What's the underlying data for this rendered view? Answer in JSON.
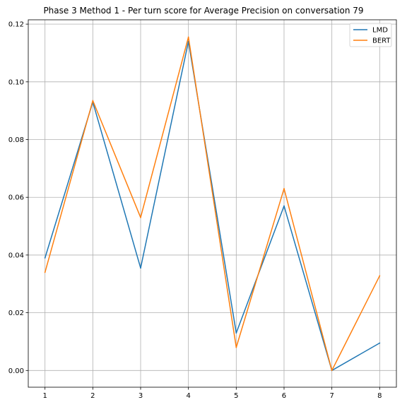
{
  "chart_data": {
    "type": "line",
    "title": "Phase 3 Method 1 - Per turn score for Average Precision on conversation 79",
    "xlabel": "",
    "ylabel": "",
    "x": [
      1,
      2,
      3,
      4,
      5,
      6,
      7,
      8
    ],
    "xlim": [
      0.65,
      8.35
    ],
    "ylim": [
      -0.0058,
      0.1215
    ],
    "xticks": [
      1,
      2,
      3,
      4,
      5,
      6,
      7,
      8
    ],
    "yticks": [
      0.0,
      0.02,
      0.04,
      0.06,
      0.08,
      0.1,
      0.12
    ],
    "ytick_labels": [
      "0.00",
      "0.02",
      "0.04",
      "0.06",
      "0.08",
      "0.10",
      "0.12"
    ],
    "grid": true,
    "legend_position": "top-right",
    "series": [
      {
        "name": "LMD",
        "color": "#1f77b4",
        "values": [
          0.039,
          0.093,
          0.0355,
          0.114,
          0.013,
          0.057,
          0.0,
          0.0095
        ]
      },
      {
        "name": "BERT",
        "color": "#ff7f0e",
        "values": [
          0.034,
          0.0935,
          0.053,
          0.1155,
          0.008,
          0.063,
          0.0,
          0.0328
        ]
      }
    ]
  }
}
